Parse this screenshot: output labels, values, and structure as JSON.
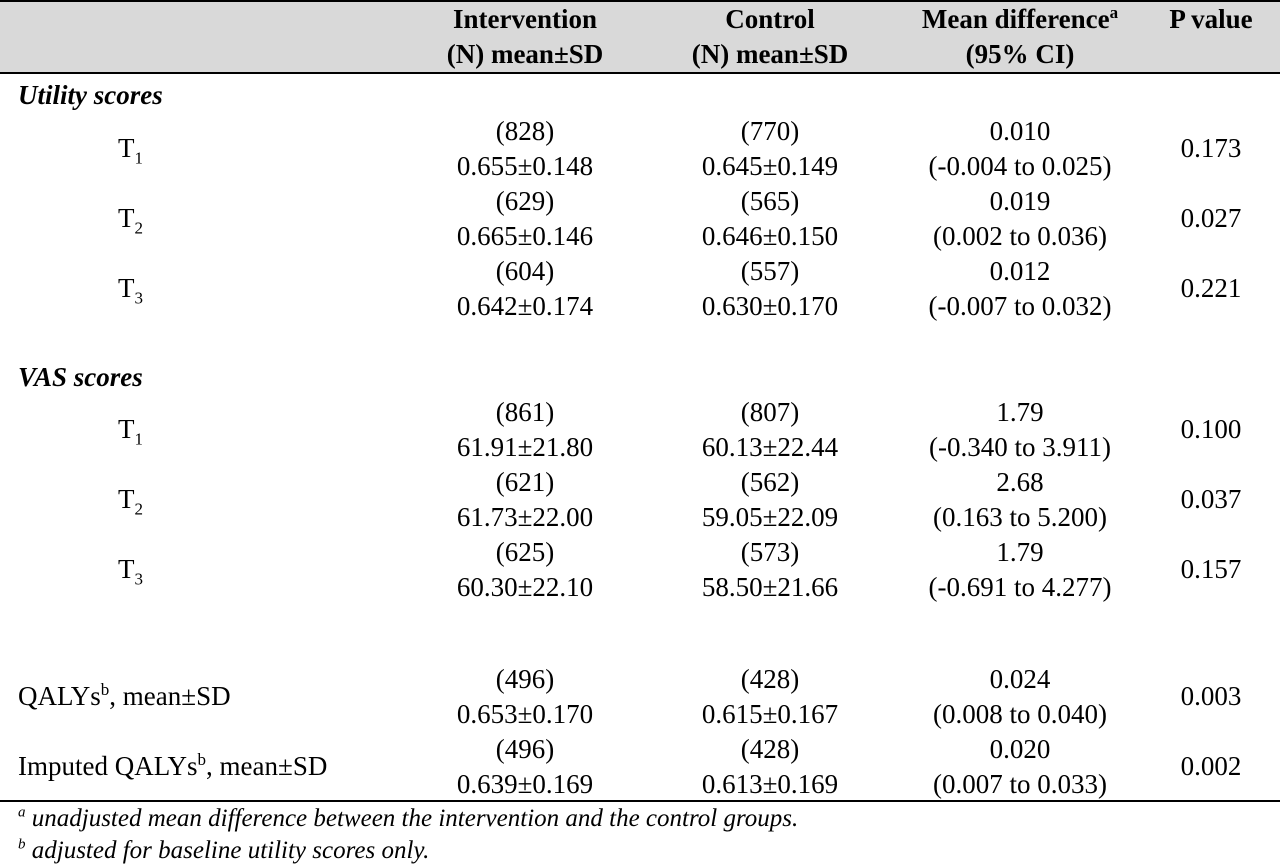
{
  "header": {
    "intervention": [
      "Intervention",
      "(N) mean±SD"
    ],
    "control": [
      "Control",
      "(N) mean±SD"
    ],
    "meandiff": [
      "Mean difference",
      "a",
      "(95% CI)"
    ],
    "pvalue": "P value"
  },
  "sections": {
    "utility": "Utility scores",
    "vas": "VAS scores"
  },
  "utility_rows": [
    {
      "t": "T",
      "sub": "1",
      "int_n": "(828)",
      "int_v": "0.655±0.148",
      "ctl_n": "(770)",
      "ctl_v": "0.645±0.149",
      "md": "0.010",
      "ci": "(-0.004 to 0.025)",
      "p": "0.173"
    },
    {
      "t": "T",
      "sub": "2",
      "int_n": "(629)",
      "int_v": "0.665±0.146",
      "ctl_n": "(565)",
      "ctl_v": "0.646±0.150",
      "md": "0.019",
      "ci": "(0.002 to 0.036)",
      "p": "0.027"
    },
    {
      "t": "T",
      "sub": "3",
      "int_n": "(604)",
      "int_v": "0.642±0.174",
      "ctl_n": "(557)",
      "ctl_v": "0.630±0.170",
      "md": "0.012",
      "ci": "(-0.007 to 0.032)",
      "p": "0.221"
    }
  ],
  "vas_rows": [
    {
      "t": "T",
      "sub": "1",
      "int_n": "(861)",
      "int_v": "61.91±21.80",
      "ctl_n": "(807)",
      "ctl_v": "60.13±22.44",
      "md": "1.79",
      "ci": "(-0.340 to 3.911)",
      "p": "0.100"
    },
    {
      "t": "T",
      "sub": "2",
      "int_n": "(621)",
      "int_v": "61.73±22.00",
      "ctl_n": "(562)",
      "ctl_v": "59.05±22.09",
      "md": "2.68",
      "ci": "(0.163 to 5.200)",
      "p": "0.037"
    },
    {
      "t": "T",
      "sub": "3",
      "int_n": "(625)",
      "int_v": "60.30±22.10",
      "ctl_n": "(573)",
      "ctl_v": "58.50±21.66",
      "md": "1.79",
      "ci": "(-0.691 to 4.277)",
      "p": "0.157"
    }
  ],
  "qaly_rows": [
    {
      "label": "QALYs",
      "sup": "b",
      "suffix": ", mean±SD",
      "int_n": "(496)",
      "int_v": "0.653±0.170",
      "ctl_n": "(428)",
      "ctl_v": "0.615±0.167",
      "md": "0.024",
      "ci": "(0.008 to 0.040)",
      "p": "0.003"
    },
    {
      "label": "Imputed QALYs",
      "sup": "b",
      "suffix": ", mean±SD",
      "int_n": "(496)",
      "int_v": "0.639±0.169",
      "ctl_n": "(428)",
      "ctl_v": "0.613±0.169",
      "md": "0.020",
      "ci": "(0.007 to 0.033)",
      "p": "0.002"
    }
  ],
  "footnotes": [
    {
      "mark": "a",
      "text": "unadjusted mean difference between the intervention and the control groups."
    },
    {
      "mark": "b",
      "text": "adjusted for baseline utility scores only."
    }
  ]
}
